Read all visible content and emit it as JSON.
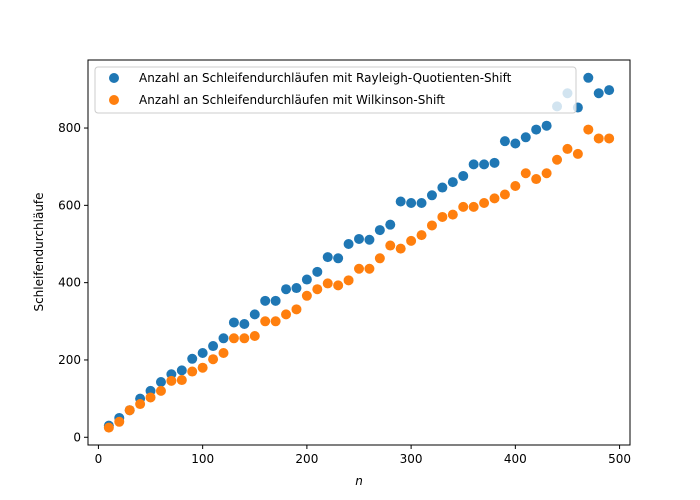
{
  "chart_data": {
    "type": "scatter",
    "title": "",
    "xlabel": "n",
    "ylabel": "Schleifendurchläufe",
    "xlim": [
      -10,
      510
    ],
    "ylim": [
      -20,
      976
    ],
    "xticks": [
      0,
      100,
      200,
      300,
      400,
      500
    ],
    "yticks": [
      0,
      200,
      400,
      600,
      800
    ],
    "grid": false,
    "legend_position": "top-left",
    "x": [
      10,
      20,
      30,
      40,
      50,
      60,
      70,
      80,
      90,
      100,
      110,
      120,
      130,
      140,
      150,
      160,
      170,
      180,
      190,
      200,
      210,
      220,
      230,
      240,
      250,
      260,
      270,
      280,
      290,
      300,
      310,
      320,
      330,
      340,
      350,
      360,
      370,
      380,
      390,
      400,
      410,
      420,
      430,
      440,
      450,
      460,
      470,
      480,
      490
    ],
    "series": [
      {
        "name": "Anzahl an Schleifendurchläufen mit Rayleigh-Quotienten-Shift",
        "color": "#1f77b4",
        "values": [
          30,
          50,
          70,
          100,
          120,
          143,
          163,
          173,
          203,
          218,
          236,
          256,
          297,
          293,
          318,
          353,
          353,
          383,
          386,
          408,
          428,
          466,
          463,
          500,
          513,
          511,
          536,
          550,
          610,
          606,
          606,
          626,
          646,
          660,
          676,
          706,
          706,
          710,
          766,
          760,
          776,
          796,
          806,
          856,
          890,
          853,
          930,
          890,
          898
        ]
      },
      {
        "name": "Anzahl an Schleifendurchläufen mit Wilkinson-Shift",
        "color": "#ff7f0e",
        "values": [
          25,
          40,
          70,
          86,
          103,
          120,
          146,
          148,
          170,
          180,
          202,
          218,
          256,
          256,
          262,
          300,
          300,
          318,
          331,
          366,
          383,
          398,
          393,
          406,
          436,
          436,
          463,
          496,
          488,
          508,
          523,
          548,
          570,
          576,
          596,
          596,
          606,
          618,
          628,
          650,
          683,
          668,
          683,
          718,
          746,
          733,
          796,
          773,
          773
        ]
      }
    ]
  }
}
